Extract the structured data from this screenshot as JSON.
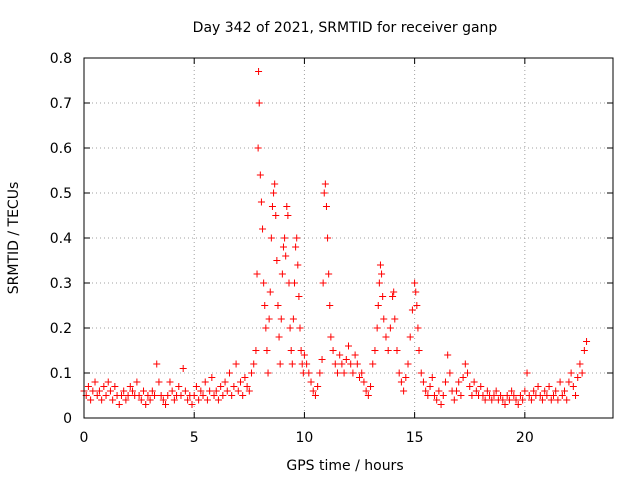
{
  "chart_data": {
    "type": "scatter",
    "title": "Day 342 of 2021, SRMTID for receiver ganp",
    "xlabel": "GPS time / hours",
    "ylabel": "SRMTID / TECUs",
    "xlim": [
      0,
      24
    ],
    "ylim": [
      0,
      0.8
    ],
    "xticks": [
      0,
      5,
      10,
      15,
      20
    ],
    "yticks": [
      0,
      0.1,
      0.2,
      0.3,
      0.4,
      0.5,
      0.6,
      0.7,
      0.8
    ],
    "xtick_labels": [
      "0",
      "5",
      "10",
      "15",
      "20"
    ],
    "ytick_labels": [
      "0",
      "0.1",
      "0.2",
      "0.3",
      "0.4",
      "0.5",
      "0.6",
      "0.7",
      "0.8"
    ],
    "grid": true,
    "marker": "+",
    "color": "#ff0000",
    "series": [
      {
        "name": "SRMTID",
        "points": [
          [
            0.0,
            0.06
          ],
          [
            0.1,
            0.05
          ],
          [
            0.2,
            0.07
          ],
          [
            0.3,
            0.04
          ],
          [
            0.4,
            0.06
          ],
          [
            0.5,
            0.08
          ],
          [
            0.6,
            0.05
          ],
          [
            0.7,
            0.06
          ],
          [
            0.8,
            0.04
          ],
          [
            0.9,
            0.07
          ],
          [
            1.0,
            0.05
          ],
          [
            1.1,
            0.08
          ],
          [
            1.2,
            0.06
          ],
          [
            1.3,
            0.04
          ],
          [
            1.4,
            0.07
          ],
          [
            1.5,
            0.05
          ],
          [
            1.6,
            0.03
          ],
          [
            1.7,
            0.05
          ],
          [
            1.8,
            0.06
          ],
          [
            1.9,
            0.04
          ],
          [
            2.0,
            0.05
          ],
          [
            2.1,
            0.07
          ],
          [
            2.2,
            0.06
          ],
          [
            2.3,
            0.05
          ],
          [
            2.4,
            0.08
          ],
          [
            2.5,
            0.05
          ],
          [
            2.6,
            0.04
          ],
          [
            2.7,
            0.06
          ],
          [
            2.8,
            0.03
          ],
          [
            2.9,
            0.05
          ],
          [
            3.0,
            0.04
          ],
          [
            3.1,
            0.06
          ],
          [
            3.2,
            0.05
          ],
          [
            3.3,
            0.12
          ],
          [
            3.4,
            0.08
          ],
          [
            3.5,
            0.05
          ],
          [
            3.6,
            0.04
          ],
          [
            3.7,
            0.03
          ],
          [
            3.8,
            0.05
          ],
          [
            3.9,
            0.08
          ],
          [
            4.0,
            0.06
          ],
          [
            4.1,
            0.04
          ],
          [
            4.2,
            0.05
          ],
          [
            4.3,
            0.07
          ],
          [
            4.4,
            0.05
          ],
          [
            4.5,
            0.11
          ],
          [
            4.6,
            0.06
          ],
          [
            4.7,
            0.04
          ],
          [
            4.8,
            0.05
          ],
          [
            4.9,
            0.03
          ],
          [
            5.0,
            0.05
          ],
          [
            5.1,
            0.07
          ],
          [
            5.2,
            0.04
          ],
          [
            5.3,
            0.06
          ],
          [
            5.4,
            0.05
          ],
          [
            5.5,
            0.08
          ],
          [
            5.6,
            0.04
          ],
          [
            5.7,
            0.06
          ],
          [
            5.8,
            0.09
          ],
          [
            5.9,
            0.05
          ],
          [
            6.0,
            0.06
          ],
          [
            6.1,
            0.04
          ],
          [
            6.2,
            0.07
          ],
          [
            6.3,
            0.05
          ],
          [
            6.4,
            0.08
          ],
          [
            6.5,
            0.06
          ],
          [
            6.6,
            0.1
          ],
          [
            6.7,
            0.05
          ],
          [
            6.8,
            0.07
          ],
          [
            6.9,
            0.12
          ],
          [
            7.0,
            0.06
          ],
          [
            7.1,
            0.08
          ],
          [
            7.2,
            0.05
          ],
          [
            7.3,
            0.09
          ],
          [
            7.4,
            0.07
          ],
          [
            7.5,
            0.06
          ],
          [
            7.6,
            0.1
          ],
          [
            7.7,
            0.12
          ],
          [
            7.8,
            0.15
          ],
          [
            7.85,
            0.32
          ],
          [
            7.9,
            0.6
          ],
          [
            7.92,
            0.77
          ],
          [
            7.95,
            0.7
          ],
          [
            8.0,
            0.54
          ],
          [
            8.05,
            0.48
          ],
          [
            8.1,
            0.42
          ],
          [
            8.15,
            0.3
          ],
          [
            8.2,
            0.25
          ],
          [
            8.25,
            0.2
          ],
          [
            8.3,
            0.15
          ],
          [
            8.35,
            0.1
          ],
          [
            8.4,
            0.22
          ],
          [
            8.45,
            0.28
          ],
          [
            8.5,
            0.4
          ],
          [
            8.55,
            0.47
          ],
          [
            8.6,
            0.5
          ],
          [
            8.65,
            0.52
          ],
          [
            8.7,
            0.45
          ],
          [
            8.75,
            0.35
          ],
          [
            8.8,
            0.25
          ],
          [
            8.85,
            0.18
          ],
          [
            8.9,
            0.12
          ],
          [
            8.95,
            0.22
          ],
          [
            9.0,
            0.32
          ],
          [
            9.05,
            0.38
          ],
          [
            9.1,
            0.4
          ],
          [
            9.15,
            0.36
          ],
          [
            9.2,
            0.47
          ],
          [
            9.25,
            0.45
          ],
          [
            9.3,
            0.3
          ],
          [
            9.35,
            0.2
          ],
          [
            9.4,
            0.15
          ],
          [
            9.45,
            0.12
          ],
          [
            9.5,
            0.22
          ],
          [
            9.55,
            0.3
          ],
          [
            9.6,
            0.38
          ],
          [
            9.65,
            0.4
          ],
          [
            9.7,
            0.34
          ],
          [
            9.75,
            0.27
          ],
          [
            9.8,
            0.2
          ],
          [
            9.85,
            0.15
          ],
          [
            9.9,
            0.12
          ],
          [
            9.95,
            0.1
          ],
          [
            10.0,
            0.14
          ],
          [
            10.1,
            0.12
          ],
          [
            10.2,
            0.1
          ],
          [
            10.3,
            0.08
          ],
          [
            10.4,
            0.06
          ],
          [
            10.5,
            0.05
          ],
          [
            10.6,
            0.07
          ],
          [
            10.7,
            0.1
          ],
          [
            10.8,
            0.13
          ],
          [
            10.85,
            0.3
          ],
          [
            10.9,
            0.5
          ],
          [
            10.95,
            0.52
          ],
          [
            11.0,
            0.47
          ],
          [
            11.05,
            0.4
          ],
          [
            11.1,
            0.32
          ],
          [
            11.15,
            0.25
          ],
          [
            11.2,
            0.18
          ],
          [
            11.3,
            0.15
          ],
          [
            11.4,
            0.12
          ],
          [
            11.5,
            0.1
          ],
          [
            11.6,
            0.14
          ],
          [
            11.7,
            0.12
          ],
          [
            11.8,
            0.1
          ],
          [
            11.9,
            0.13
          ],
          [
            12.0,
            0.16
          ],
          [
            12.1,
            0.12
          ],
          [
            12.2,
            0.1
          ],
          [
            12.3,
            0.14
          ],
          [
            12.4,
            0.12
          ],
          [
            12.5,
            0.09
          ],
          [
            12.6,
            0.1
          ],
          [
            12.7,
            0.08
          ],
          [
            12.8,
            0.06
          ],
          [
            12.9,
            0.05
          ],
          [
            13.0,
            0.07
          ],
          [
            13.1,
            0.12
          ],
          [
            13.2,
            0.15
          ],
          [
            13.3,
            0.2
          ],
          [
            13.35,
            0.25
          ],
          [
            13.4,
            0.3
          ],
          [
            13.45,
            0.34
          ],
          [
            13.5,
            0.32
          ],
          [
            13.55,
            0.27
          ],
          [
            13.6,
            0.22
          ],
          [
            13.7,
            0.18
          ],
          [
            13.8,
            0.15
          ],
          [
            13.9,
            0.2
          ],
          [
            14.0,
            0.27
          ],
          [
            14.05,
            0.28
          ],
          [
            14.1,
            0.22
          ],
          [
            14.2,
            0.15
          ],
          [
            14.3,
            0.1
          ],
          [
            14.4,
            0.08
          ],
          [
            14.5,
            0.06
          ],
          [
            14.6,
            0.09
          ],
          [
            14.7,
            0.12
          ],
          [
            14.8,
            0.18
          ],
          [
            14.9,
            0.24
          ],
          [
            15.0,
            0.3
          ],
          [
            15.05,
            0.28
          ],
          [
            15.1,
            0.25
          ],
          [
            15.15,
            0.2
          ],
          [
            15.2,
            0.15
          ],
          [
            15.3,
            0.1
          ],
          [
            15.4,
            0.08
          ],
          [
            15.5,
            0.06
          ],
          [
            15.6,
            0.05
          ],
          [
            15.7,
            0.07
          ],
          [
            15.8,
            0.09
          ],
          [
            15.9,
            0.05
          ],
          [
            16.0,
            0.04
          ],
          [
            16.1,
            0.06
          ],
          [
            16.2,
            0.03
          ],
          [
            16.3,
            0.05
          ],
          [
            16.4,
            0.08
          ],
          [
            16.5,
            0.14
          ],
          [
            16.6,
            0.1
          ],
          [
            16.7,
            0.06
          ],
          [
            16.8,
            0.04
          ],
          [
            16.9,
            0.06
          ],
          [
            17.0,
            0.08
          ],
          [
            17.1,
            0.05
          ],
          [
            17.2,
            0.09
          ],
          [
            17.3,
            0.12
          ],
          [
            17.4,
            0.1
          ],
          [
            17.5,
            0.07
          ],
          [
            17.6,
            0.05
          ],
          [
            17.7,
            0.08
          ],
          [
            17.8,
            0.06
          ],
          [
            17.9,
            0.05
          ],
          [
            18.0,
            0.07
          ],
          [
            18.1,
            0.05
          ],
          [
            18.2,
            0.04
          ],
          [
            18.3,
            0.06
          ],
          [
            18.4,
            0.05
          ],
          [
            18.5,
            0.04
          ],
          [
            18.6,
            0.05
          ],
          [
            18.7,
            0.06
          ],
          [
            18.8,
            0.04
          ],
          [
            18.9,
            0.05
          ],
          [
            19.0,
            0.04
          ],
          [
            19.1,
            0.03
          ],
          [
            19.2,
            0.05
          ],
          [
            19.3,
            0.04
          ],
          [
            19.4,
            0.06
          ],
          [
            19.5,
            0.05
          ],
          [
            19.6,
            0.04
          ],
          [
            19.7,
            0.03
          ],
          [
            19.8,
            0.05
          ],
          [
            19.9,
            0.04
          ],
          [
            20.0,
            0.06
          ],
          [
            20.1,
            0.1
          ],
          [
            20.2,
            0.05
          ],
          [
            20.3,
            0.04
          ],
          [
            20.4,
            0.06
          ],
          [
            20.5,
            0.05
          ],
          [
            20.6,
            0.07
          ],
          [
            20.7,
            0.05
          ],
          [
            20.8,
            0.04
          ],
          [
            20.9,
            0.06
          ],
          [
            21.0,
            0.05
          ],
          [
            21.1,
            0.07
          ],
          [
            21.2,
            0.04
          ],
          [
            21.3,
            0.05
          ],
          [
            21.4,
            0.06
          ],
          [
            21.5,
            0.04
          ],
          [
            21.6,
            0.08
          ],
          [
            21.7,
            0.05
          ],
          [
            21.8,
            0.06
          ],
          [
            21.9,
            0.04
          ],
          [
            22.0,
            0.08
          ],
          [
            22.1,
            0.1
          ],
          [
            22.2,
            0.07
          ],
          [
            22.3,
            0.05
          ],
          [
            22.4,
            0.09
          ],
          [
            22.5,
            0.12
          ],
          [
            22.6,
            0.1
          ],
          [
            22.7,
            0.15
          ],
          [
            22.8,
            0.17
          ]
        ]
      }
    ]
  }
}
